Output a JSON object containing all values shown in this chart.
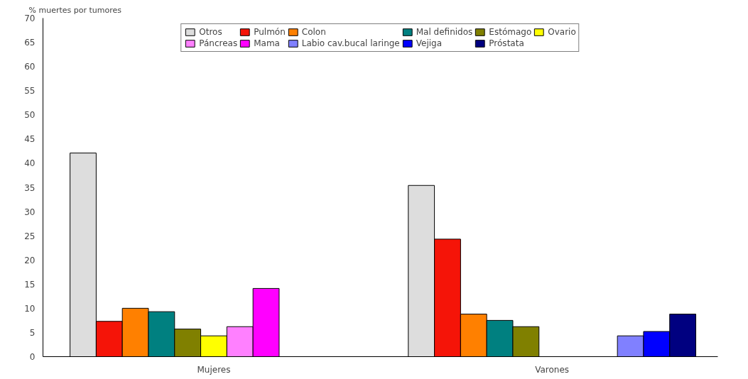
{
  "chart_data": {
    "type": "bar",
    "ylabel": "% muertes por tumores",
    "categories": [
      "Mujeres",
      "Varones"
    ],
    "series": [
      {
        "name": "Otros",
        "color": "#dddddd",
        "values": [
          42.1,
          35.4
        ]
      },
      {
        "name": "Pulmón",
        "color": "#f51408",
        "values": [
          7.3,
          24.3
        ]
      },
      {
        "name": "Colon",
        "color": "#ff8000",
        "values": [
          10,
          8.8
        ]
      },
      {
        "name": "Mal definidos",
        "color": "#008080",
        "values": [
          9.3,
          7.5
        ]
      },
      {
        "name": "Estómago",
        "color": "#808000",
        "values": [
          5.7,
          6.2
        ]
      },
      {
        "name": "Ovario",
        "color": "#ffff00",
        "values": [
          4.3,
          null
        ]
      },
      {
        "name": "Páncreas",
        "color": "#ff80ff",
        "values": [
          6.2,
          null
        ]
      },
      {
        "name": "Mama",
        "color": "#ff00ff",
        "values": [
          14.1,
          null
        ]
      },
      {
        "name": "Labio cav.bucal laringe",
        "color": "#8080ff",
        "values": [
          null,
          4.3
        ]
      },
      {
        "name": "Vejiga",
        "color": "#0000ff",
        "values": [
          null,
          5.2
        ]
      },
      {
        "name": "Próstata",
        "color": "#000080",
        "values": [
          null,
          8.8
        ]
      }
    ],
    "ylim": [
      0,
      70
    ],
    "yticks": [
      0,
      5,
      10,
      15,
      20,
      25,
      30,
      35,
      40,
      45,
      50,
      55,
      60,
      65,
      70
    ],
    "grid": false,
    "legend": "top"
  }
}
